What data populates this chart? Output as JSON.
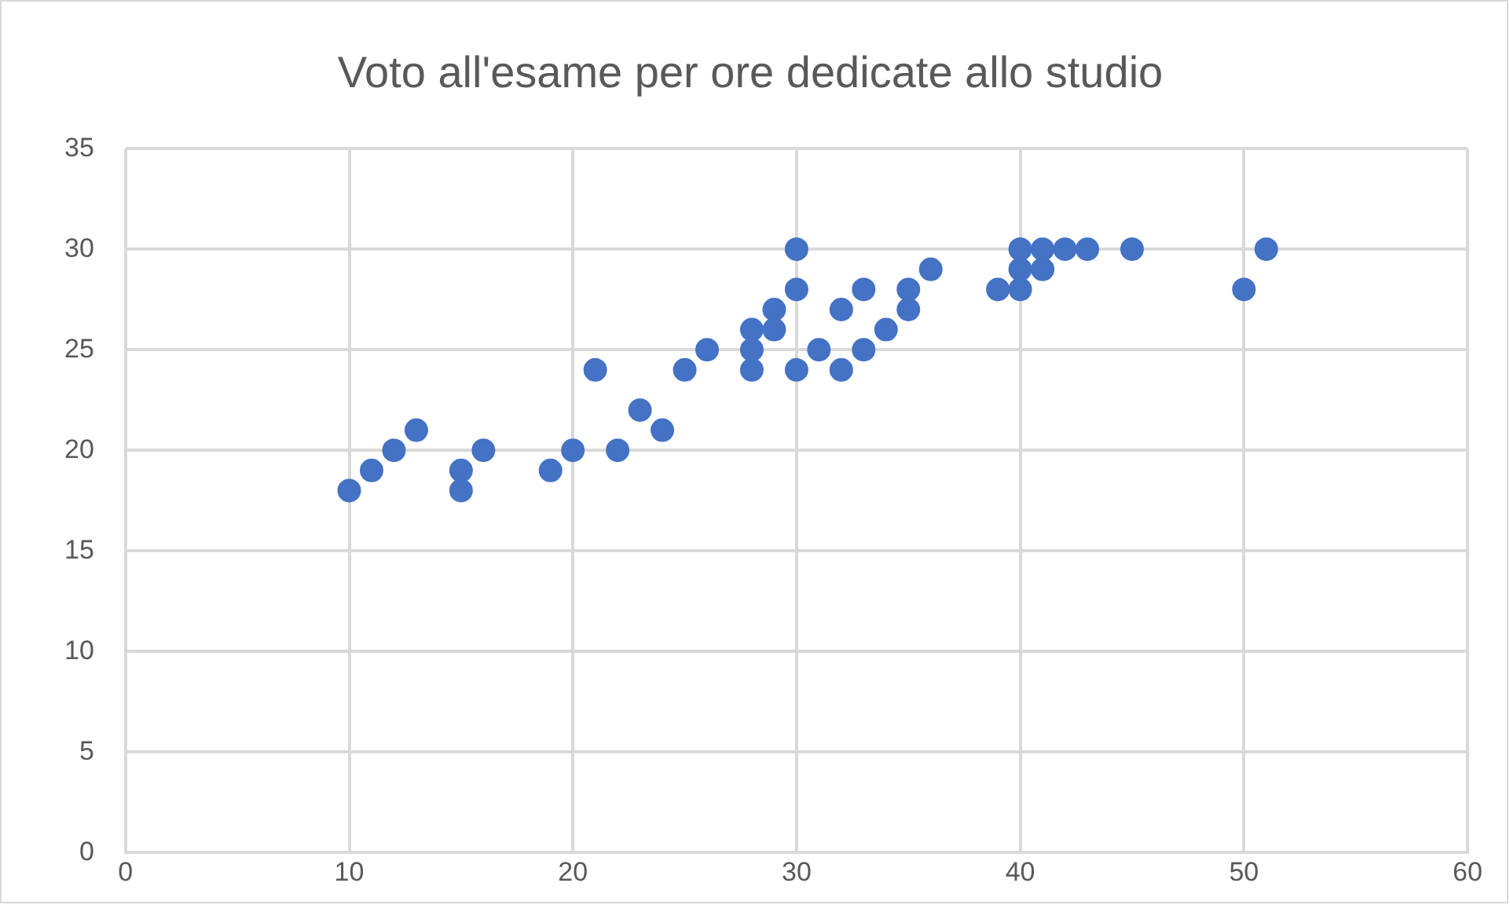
{
  "chart_data": {
    "type": "scatter",
    "title": "Voto all'esame per ore dedicate allo studio",
    "x": [
      10,
      11,
      12,
      13,
      15,
      15,
      16,
      19,
      20,
      21,
      22,
      23,
      24,
      25,
      26,
      28,
      28,
      28,
      29,
      29,
      30,
      30,
      30,
      31,
      32,
      32,
      33,
      33,
      34,
      35,
      35,
      36,
      39,
      40,
      40,
      40,
      41,
      41,
      42,
      43,
      45,
      50,
      51
    ],
    "values": [
      18,
      19,
      20,
      21,
      19,
      18,
      20,
      19,
      20,
      24,
      20,
      22,
      21,
      24,
      25,
      26,
      25,
      24,
      27,
      26,
      30,
      28,
      24,
      25,
      27,
      24,
      28,
      25,
      26,
      28,
      27,
      29,
      28,
      30,
      29,
      28,
      30,
      29,
      30,
      30,
      30,
      28,
      30
    ],
    "color": "#4472c4",
    "marker": "circle",
    "xlim": [
      0,
      60
    ],
    "xticks": [
      0,
      10,
      20,
      30,
      40,
      50,
      60
    ],
    "ylim": [
      0,
      35
    ],
    "yticks": [
      0,
      5,
      10,
      15,
      20,
      25,
      30,
      35
    ],
    "grid": true,
    "legend": false
  }
}
